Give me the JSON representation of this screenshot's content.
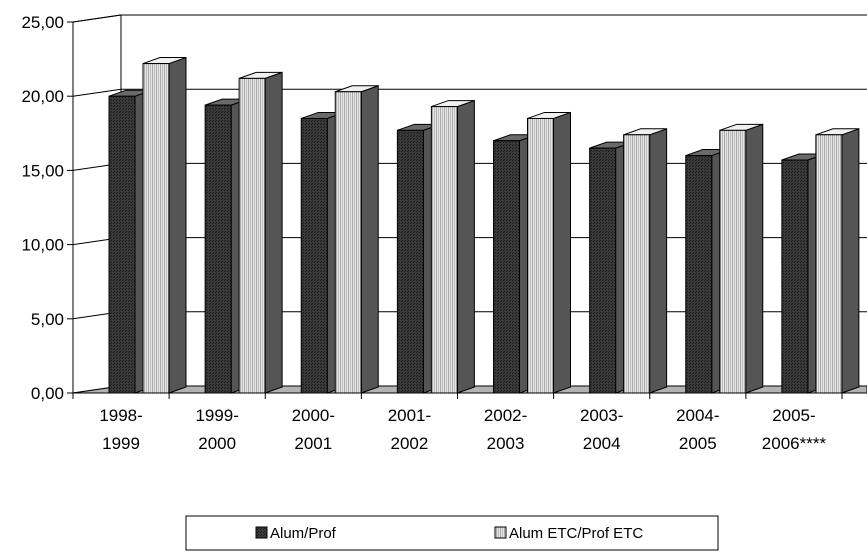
{
  "chart_data": {
    "type": "bar",
    "categories": [
      [
        "1998-",
        "1999"
      ],
      [
        "1999-",
        "2000"
      ],
      [
        "2000-",
        "2001"
      ],
      [
        "2001-",
        "2002"
      ],
      [
        "2002-",
        "2003"
      ],
      [
        "2003-",
        "2004"
      ],
      [
        "2004-",
        "2005"
      ],
      [
        "2005-",
        "2006****"
      ]
    ],
    "series": [
      {
        "name": "Alum/Prof",
        "values": [
          20.0,
          19.4,
          18.5,
          17.7,
          17.0,
          16.5,
          16.0,
          15.7
        ]
      },
      {
        "name": "Alum ETC/Prof ETC",
        "values": [
          22.2,
          21.2,
          20.3,
          19.3,
          18.5,
          17.4,
          17.7,
          17.4
        ]
      }
    ],
    "yticks": [
      "0,00",
      "5,00",
      "10,00",
      "15,00",
      "20,00",
      "25,00"
    ],
    "ylim": [
      0,
      25
    ],
    "grid": true,
    "legend_position": "bottom",
    "colors": {
      "series1": "#262626",
      "series2": "#cccccc",
      "floor": "#b3b3b3"
    }
  }
}
